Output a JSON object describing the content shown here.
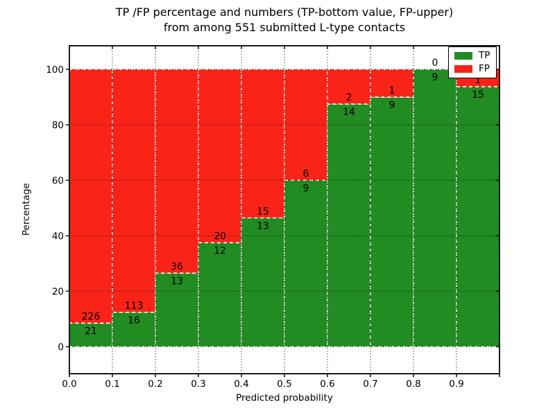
{
  "title": {
    "line1": "TP /FP percentage and numbers (TP-bottom value, FP-upper)",
    "line2": "from among 551 submitted L-type contacts"
  },
  "chart_data": {
    "type": "bar",
    "subtype": "stacked-100-percent",
    "title": "TP /FP percentage and numbers (TP-bottom value, FP-upper) from among 551 submitted L-type contacts",
    "xlabel": "Predicted probability",
    "ylabel": "Percentage",
    "bin_start": [
      0.0,
      0.1,
      0.2,
      0.3,
      0.4,
      0.5,
      0.6,
      0.7,
      0.8,
      0.9
    ],
    "bin_width": 0.1,
    "series": [
      {
        "name": "TP",
        "color": "#228b22",
        "counts": [
          21,
          16,
          13,
          12,
          13,
          9,
          14,
          9,
          9,
          15
        ]
      },
      {
        "name": "FP",
        "color": "#fa2318",
        "counts": [
          226,
          113,
          36,
          20,
          15,
          6,
          2,
          1,
          0,
          1
        ]
      }
    ],
    "tp_percent_of_bin": [
      8.5,
      12.4,
      26.5,
      37.5,
      46.4,
      60.0,
      87.5,
      90.0,
      100.0,
      93.8
    ],
    "stack_total_percent": 100,
    "xticks": [
      "0.0",
      "0.1",
      "0.2",
      "0.3",
      "0.4",
      "0.5",
      "0.6",
      "0.7",
      "0.8",
      "0.9"
    ],
    "yticks": [
      0,
      20,
      40,
      60,
      80,
      100
    ],
    "grid": "dotted",
    "bar_edge_style": "dashed-white",
    "legend": {
      "position": "upper right",
      "entries": [
        "TP",
        "FP"
      ]
    }
  },
  "colors": {
    "tp_green": "#228b22",
    "fp_red": "#fa2318",
    "background": "#ffffff",
    "text": "#000000",
    "grid": "#000000",
    "bar_edge": "#ffffff"
  }
}
